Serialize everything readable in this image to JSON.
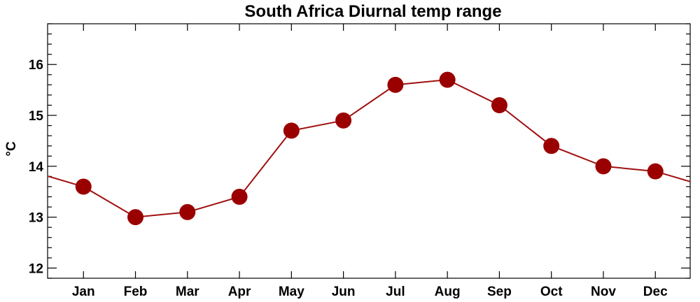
{
  "chart_data": {
    "type": "line",
    "title": "South Africa Diurnal temp range",
    "xlabel": "",
    "ylabel": "°C",
    "categories": [
      "Jan",
      "Feb",
      "Mar",
      "Apr",
      "May",
      "Jun",
      "Jul",
      "Aug",
      "Sep",
      "Oct",
      "Nov",
      "Dec"
    ],
    "series": [
      {
        "values": [
          13.6,
          13.0,
          13.1,
          13.4,
          14.7,
          14.9,
          15.6,
          15.7,
          15.2,
          14.4,
          14.0,
          13.9
        ]
      }
    ],
    "ylim": [
      11.8,
      16.8
    ],
    "yticks": [
      "12",
      "13",
      "14",
      "15",
      "16"
    ],
    "grid": false,
    "colors": {
      "series": "#9b0000",
      "line": "#a01010"
    }
  }
}
